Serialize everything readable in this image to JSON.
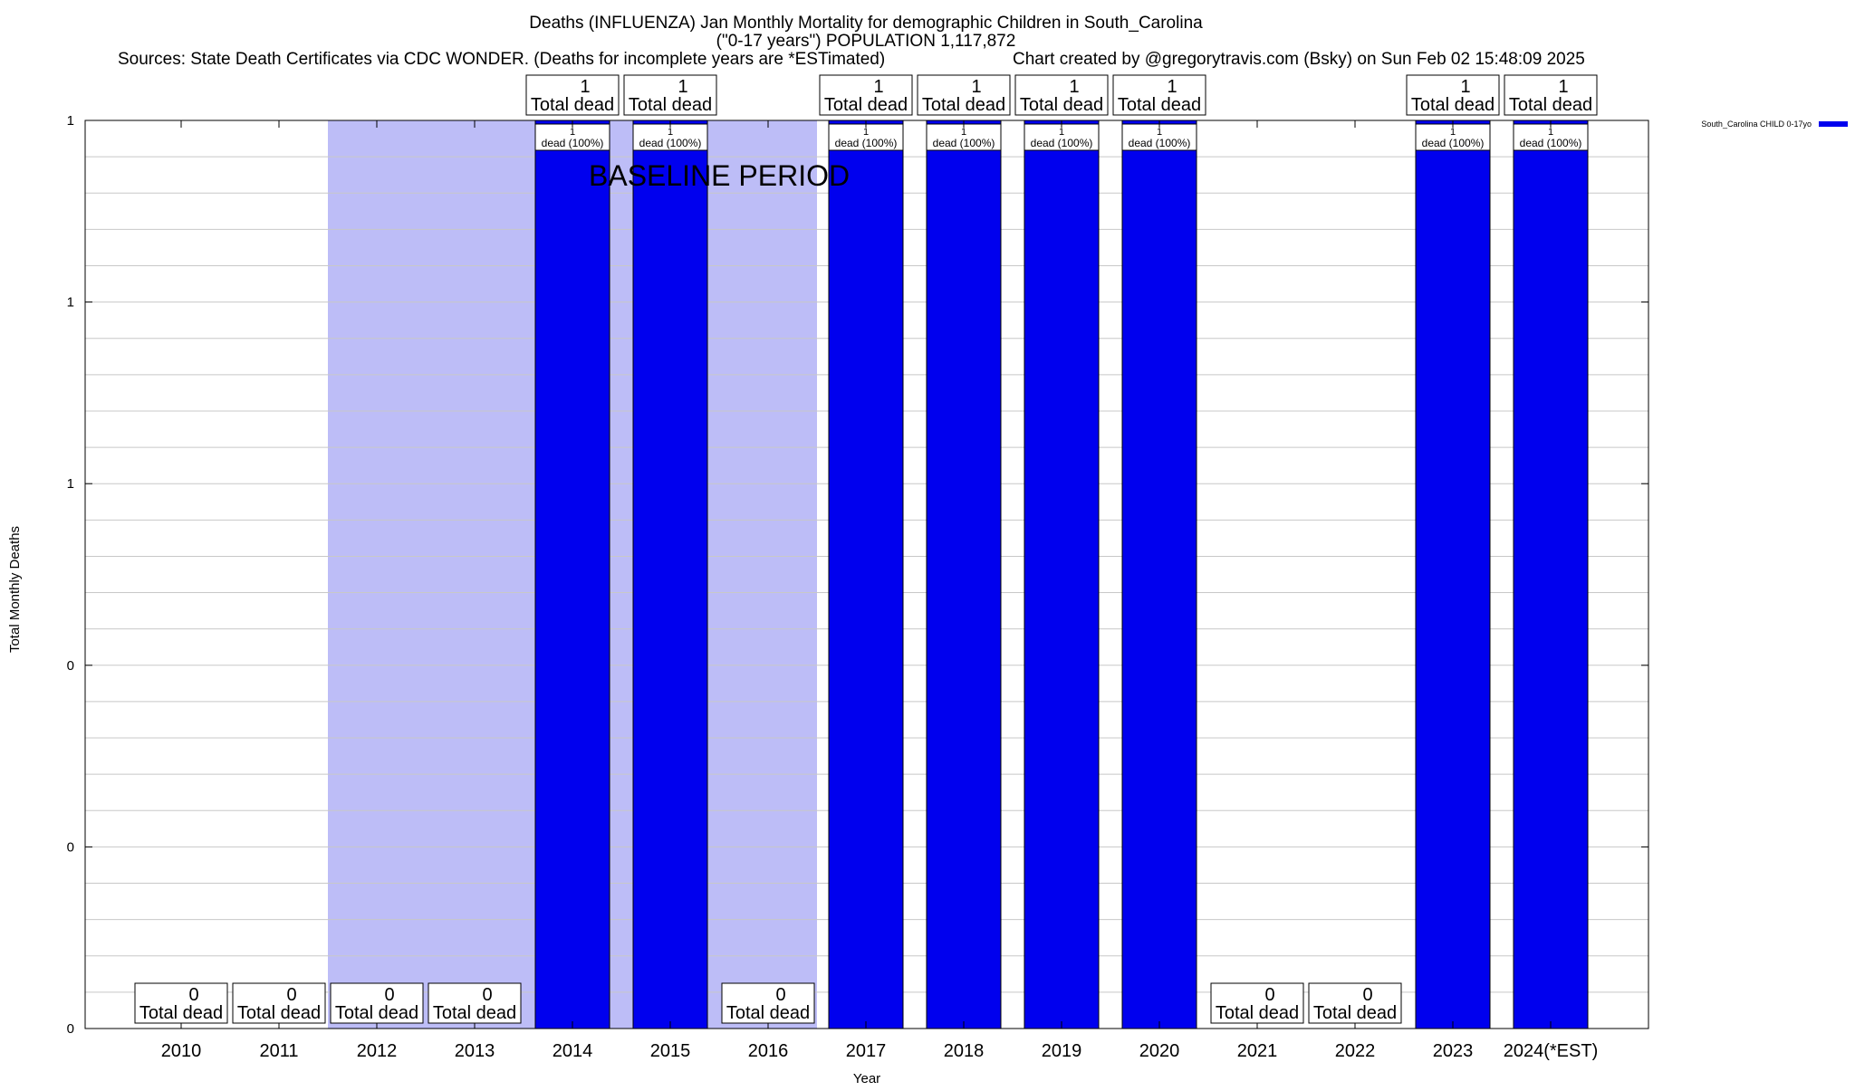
{
  "chart_data": {
    "type": "bar",
    "title": "Deaths (INFLUENZA) Jan Monthly Mortality for demographic Children in South_Carolina",
    "subtitle": "(\"0-17 years\") POPULATION 1,117,872",
    "sources": "Sources: State Death Certificates via CDC WONDER. (Deaths for incomplete years are *ESTimated)",
    "credit": "Chart created by @gregorytravis.com (Bsky) on Sun Feb 02 15:48:09 2025",
    "xlabel": "Year",
    "ylabel": "Total Monthly Deaths",
    "ylim": [
      0,
      1
    ],
    "ytick_labels": [
      "0",
      "0",
      "0",
      "1",
      "1",
      "1"
    ],
    "grid": true,
    "legend_position": "top-right",
    "series_name": "South_Carolina CHILD 0-17yo",
    "series_color": "#0000ee",
    "baseline_color": "#bdbdf7",
    "baseline_label": "BASELINE PERIOD",
    "baseline_range": [
      "2012",
      "2016"
    ],
    "categories": [
      "2010",
      "2011",
      "2012",
      "2013",
      "2014",
      "2015",
      "2016",
      "2017",
      "2018",
      "2019",
      "2020",
      "2021",
      "2022",
      "2023",
      "2024(*EST)"
    ],
    "values": [
      0,
      0,
      0,
      0,
      1,
      1,
      0,
      1,
      1,
      1,
      1,
      0,
      0,
      1,
      1
    ],
    "total_labels": [
      {
        "count": "0",
        "text": "Total dead"
      },
      {
        "count": "0",
        "text": "Total dead"
      },
      {
        "count": "0",
        "text": "Total dead"
      },
      {
        "count": "0",
        "text": "Total dead"
      },
      {
        "count": "1",
        "text": "Total dead"
      },
      {
        "count": "1",
        "text": "Total dead"
      },
      {
        "count": "0",
        "text": "Total dead"
      },
      {
        "count": "1",
        "text": "Total dead"
      },
      {
        "count": "1",
        "text": "Total dead"
      },
      {
        "count": "1",
        "text": "Total dead"
      },
      {
        "count": "1",
        "text": "Total dead"
      },
      {
        "count": "0",
        "text": "Total dead"
      },
      {
        "count": "0",
        "text": "Total dead"
      },
      {
        "count": "1",
        "text": "Total dead"
      },
      {
        "count": "1",
        "text": "Total dead"
      }
    ],
    "bar_labels": [
      "",
      "",
      "",
      "",
      "1|dead (100%)",
      "1|dead (100%)",
      "",
      "1|dead (100%)",
      "1|dead (100%)",
      "1|dead (100%)",
      "1|dead (100%)",
      "",
      "",
      "1|dead (100%)",
      "1|dead (100%)"
    ]
  }
}
